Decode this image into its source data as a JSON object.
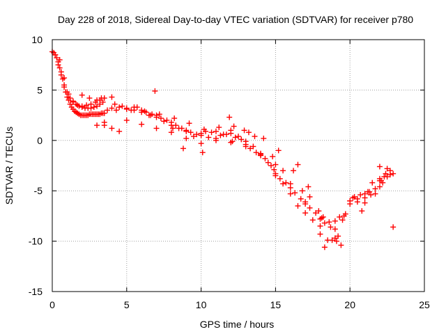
{
  "chart_data": {
    "type": "scatter",
    "title": "Day 228 of 2018, Sidereal Day-to-day VTEC variation (SDTVAR) for receiver p780",
    "xlabel": "GPS time / hours",
    "ylabel": "SDTVAR / TECUs",
    "xlim": [
      0,
      25
    ],
    "ylim": [
      -15,
      10
    ],
    "x_ticks": [
      0,
      5,
      10,
      15,
      20,
      25
    ],
    "y_ticks": [
      -15,
      -10,
      -5,
      0,
      5,
      10
    ],
    "x_tick_labels": [
      "0",
      "5",
      "10",
      "15",
      "20",
      "25"
    ],
    "y_tick_labels": [
      "-15",
      "-10",
      "-5",
      "0",
      "5",
      "10"
    ],
    "grid": true,
    "marker": "+",
    "series": [
      {
        "name": "SDTVAR",
        "color": "#ff0000",
        "x": [
          0.0,
          0.1,
          0.2,
          0.3,
          0.4,
          0.5,
          0.6,
          0.7,
          0.8,
          0.9,
          1.0,
          1.1,
          1.2,
          1.3,
          1.4,
          1.5,
          1.6,
          1.7,
          1.8,
          1.9,
          2.0,
          2.1,
          2.2,
          2.3,
          2.4,
          2.5,
          2.6,
          2.7,
          2.8,
          2.9,
          3.0,
          3.1,
          3.2,
          3.3,
          3.4,
          3.5,
          0.2,
          0.4,
          0.6,
          0.8,
          1.0,
          1.2,
          1.4,
          1.6,
          1.8,
          2.0,
          2.2,
          2.4,
          2.6,
          2.8,
          3.0,
          3.2,
          3.4,
          0.5,
          0.8,
          1.1,
          1.4,
          1.7,
          2.0,
          2.3,
          2.6,
          2.9,
          3.2,
          3.5,
          2.0,
          2.5,
          3.0,
          3.3,
          3.7,
          4.0,
          4.3,
          4.7,
          5.0,
          5.3,
          5.7,
          6.0,
          6.3,
          6.7,
          7.0,
          7.3,
          7.7,
          8.0,
          8.3,
          8.7,
          9.0,
          9.3,
          9.7,
          10.0,
          10.3,
          10.7,
          11.0,
          11.3,
          11.7,
          12.0,
          12.3,
          12.7,
          13.0,
          13.3,
          13.7,
          14.0,
          14.3,
          14.7,
          15.0,
          15.3,
          15.7,
          16.0,
          16.3,
          16.7,
          17.0,
          17.3,
          17.7,
          18.0,
          18.3,
          18.7,
          19.0,
          19.3,
          19.7,
          20.0,
          20.3,
          20.7,
          21.0,
          21.3,
          21.7,
          22.0,
          22.3,
          22.7,
          22.9,
          4.0,
          4.5,
          5.0,
          5.5,
          6.0,
          6.5,
          7.0,
          7.5,
          8.0,
          8.5,
          9.0,
          9.5,
          10.0,
          10.5,
          11.0,
          11.5,
          12.0,
          12.5,
          13.0,
          13.5,
          14.0,
          14.5,
          15.0,
          15.5,
          16.0,
          16.5,
          17.0,
          17.5,
          18.0,
          18.5,
          19.0,
          19.5,
          20.0,
          20.5,
          21.0,
          21.5,
          22.0,
          22.5,
          3.0,
          4.0,
          5.0,
          6.0,
          7.0,
          8.0,
          9.0,
          10.0,
          11.0,
          12.0,
          13.0,
          14.0,
          15.0,
          16.0,
          17.0,
          18.0,
          19.0,
          20.0,
          21.0,
          22.0,
          3.5,
          4.2,
          5.5,
          6.2,
          7.2,
          8.2,
          9.2,
          10.2,
          11.2,
          12.2,
          13.2,
          14.2,
          15.2,
          16.2,
          17.2,
          18.2,
          19.2,
          20.2,
          21.2,
          22.2,
          6.9,
          11.9,
          16.5,
          18.3,
          18.8,
          19.1,
          22.0,
          22.5,
          22.9,
          8.8,
          10.1,
          12.1,
          14.9,
          16.8,
          17.9,
          18.6,
          19.6,
          20.5,
          21.7,
          22.4,
          3.5,
          4.5,
          6.6,
          8.1,
          12.9,
          13.6,
          14.8,
          15.5,
          17.3,
          18.1,
          19.4,
          20.8,
          21.4,
          22.1,
          22.7
        ],
        "y": [
          8.8,
          8.7,
          8.5,
          8.2,
          7.8,
          7.2,
          6.8,
          6.1,
          5.3,
          4.8,
          4.3,
          4.0,
          3.6,
          3.3,
          3.1,
          2.9,
          2.8,
          2.7,
          2.6,
          2.5,
          2.5,
          2.5,
          2.5,
          2.5,
          2.5,
          2.6,
          2.6,
          2.6,
          2.6,
          2.6,
          2.6,
          2.6,
          2.6,
          2.7,
          2.7,
          2.7,
          8.5,
          7.5,
          6.5,
          5.5,
          4.8,
          4.2,
          3.9,
          3.6,
          3.4,
          3.3,
          3.2,
          3.2,
          3.2,
          3.3,
          3.4,
          3.6,
          3.8,
          8.0,
          6.2,
          4.6,
          3.8,
          3.5,
          3.4,
          3.5,
          3.6,
          3.8,
          4.0,
          4.2,
          4.5,
          4.2,
          4.0,
          4.2,
          3.0,
          3.2,
          3.0,
          3.4,
          3.2,
          3.0,
          3.3,
          3.0,
          2.8,
          2.6,
          2.5,
          2.2,
          2.0,
          1.8,
          1.5,
          1.2,
          1.0,
          0.8,
          0.6,
          0.7,
          0.9,
          0.8,
          0.9,
          0.5,
          0.6,
          0.7,
          0.3,
          0.1,
          -0.4,
          -0.8,
          -1.2,
          -1.5,
          -1.8,
          -2.5,
          -3.3,
          -3.8,
          -4.2,
          -4.7,
          -5.2,
          -5.8,
          -6.3,
          -6.7,
          -7.2,
          -7.8,
          -8.2,
          -8.6,
          -8.0,
          -7.6,
          -7.3,
          -6.0,
          -5.6,
          -5.4,
          -5.3,
          -5.1,
          -4.8,
          -4.0,
          -3.6,
          -3.4,
          -3.3,
          4.3,
          3.3,
          3.1,
          3.0,
          2.8,
          2.5,
          2.3,
          1.9,
          1.5,
          1.2,
          0.9,
          0.4,
          0.5,
          0.3,
          0.2,
          0.6,
          1.0,
          0.4,
          -0.1,
          -0.6,
          -1.3,
          -2.2,
          -3.5,
          -4.3,
          -5.3,
          -6.5,
          -7.2,
          -7.9,
          -9.3,
          -9.9,
          -8.8,
          -7.9,
          -6.0,
          -5.8,
          -5.7,
          -4.2,
          -3.8,
          -3.6,
          1.5,
          1.2,
          2.0,
          1.6,
          1.2,
          0.8,
          0.2,
          -0.3,
          0.0,
          -0.2,
          -0.6,
          -1.4,
          -2.4,
          -4.3,
          -6.1,
          -8.5,
          -9.7,
          -6.3,
          -6.2,
          -4.6,
          1.8,
          3.6,
          3.3,
          2.9,
          2.6,
          2.2,
          1.7,
          1.1,
          1.3,
          1.4,
          0.8,
          0.2,
          -1.0,
          -3.0,
          -4.6,
          -7.6,
          -9.5,
          -5.7,
          -5.1,
          -4.2,
          4.9,
          2.3,
          -2.4,
          -10.6,
          -9.9,
          -10.0,
          -2.6,
          -2.8,
          -8.6,
          -0.8,
          -1.2,
          -0.1,
          -2.9,
          -5.0,
          -7.0,
          -8.1,
          -7.5,
          -6.1,
          -5.3,
          -3.3,
          1.5,
          0.9,
          2.5,
          1.2,
          1.0,
          0.4,
          -1.6,
          -3.0,
          -5.6,
          -7.7,
          -10.4,
          -7.0,
          -5.4,
          -4.0,
          -3.0
        ]
      }
    ]
  }
}
